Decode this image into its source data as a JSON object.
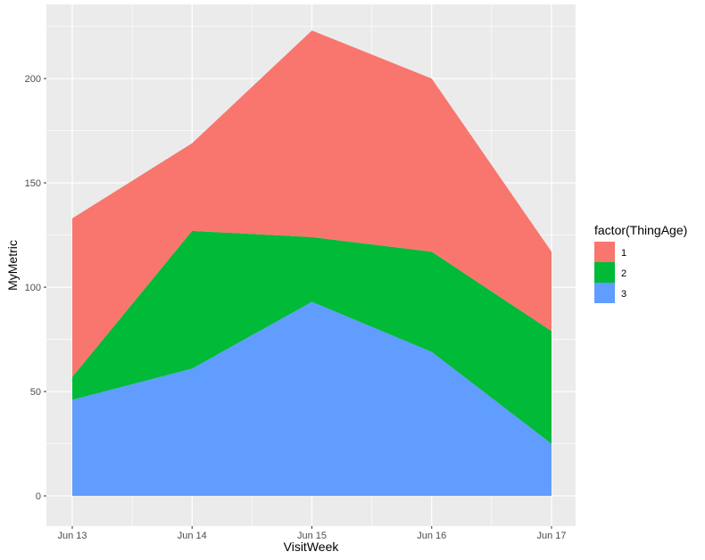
{
  "chart_data": {
    "type": "area",
    "stacked": true,
    "title": "",
    "xlabel": "VisitWeek",
    "ylabel": "MyMetric",
    "categories": [
      "Jun 13",
      "Jun 14",
      "Jun 15",
      "Jun 16",
      "Jun 17"
    ],
    "ylim": [
      -14.5,
      235.5
    ],
    "yticks": [
      0,
      50,
      100,
      150,
      200
    ],
    "grid": true,
    "legend": {
      "title": "factor(ThingAge)",
      "position": "right"
    },
    "series": [
      {
        "name": "1",
        "color": "#F8766D",
        "values": [
          76,
          42,
          99,
          83,
          38
        ]
      },
      {
        "name": "2",
        "color": "#00BA38",
        "values": [
          11,
          66,
          31,
          48,
          54
        ]
      },
      {
        "name": "3",
        "color": "#619CFF",
        "values": [
          46,
          61,
          93,
          69,
          25
        ]
      }
    ]
  }
}
